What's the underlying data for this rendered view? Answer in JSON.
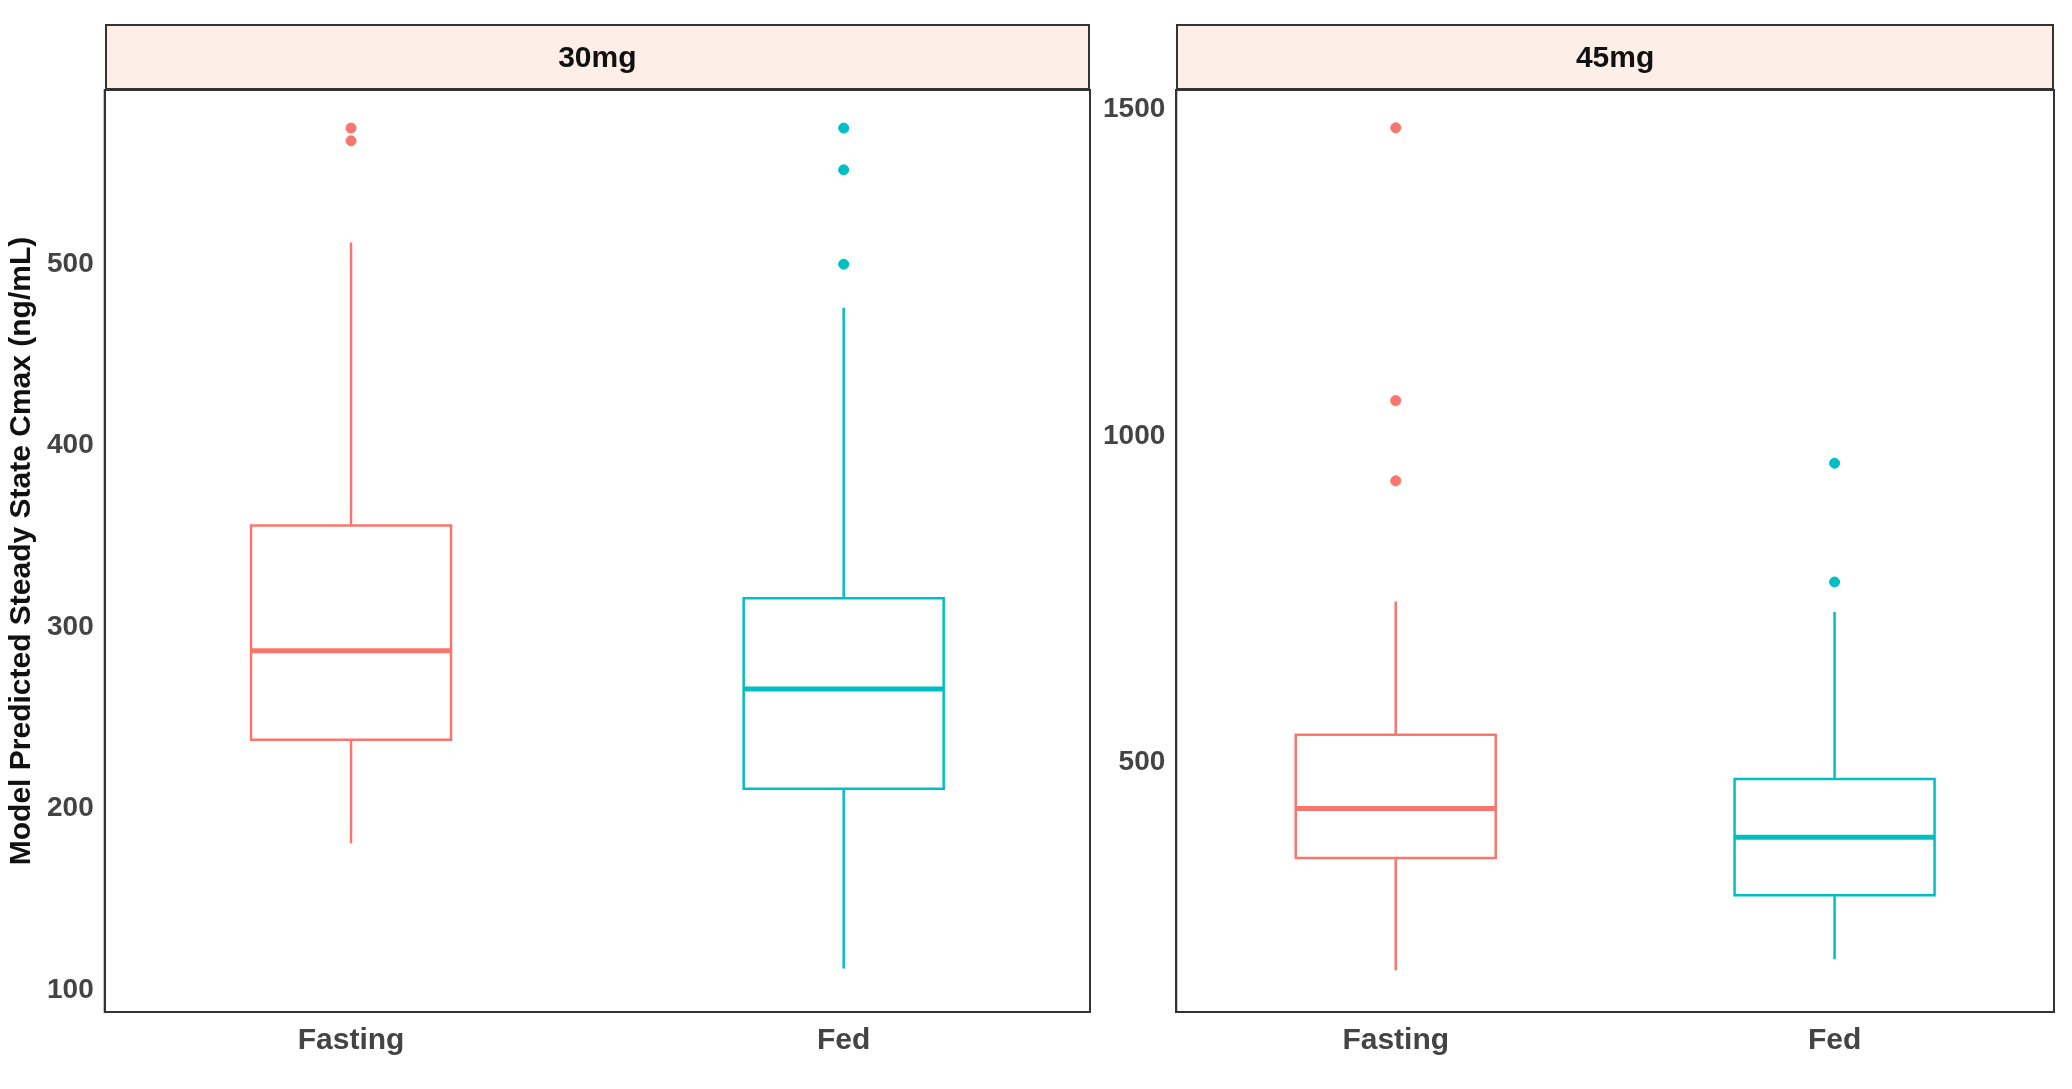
{
  "chart_data": [
    {
      "type": "box",
      "title": "30mg",
      "ylabel": "Model Predicted Steady State Cmax (ng/mL)",
      "categories": [
        "Fasting",
        "Fed"
      ],
      "colors": [
        "#f8766d",
        "#00bfc4"
      ],
      "ylim": [
        88,
        596
      ],
      "yticks": [
        100,
        200,
        300,
        400,
        500
      ],
      "grid": false,
      "boxes": [
        {
          "low": 181,
          "q1": 238,
          "median": 287,
          "q3": 356,
          "high": 512,
          "outliers": [
            575,
            568
          ]
        },
        {
          "low": 112,
          "q1": 211,
          "median": 266,
          "q3": 316,
          "high": 476,
          "outliers": [
            575,
            552,
            500
          ]
        }
      ]
    },
    {
      "type": "box",
      "title": "45mg",
      "categories": [
        "Fasting",
        "Fed"
      ],
      "colors": [
        "#f8766d",
        "#00bfc4"
      ],
      "ylim": [
        117,
        1530
      ],
      "yticks": [
        500,
        1000,
        1500
      ],
      "grid": false,
      "boxes": [
        {
          "low": 181,
          "q1": 353,
          "median": 429,
          "q3": 542,
          "high": 746,
          "outliers": [
            1472,
            1054,
            931
          ]
        },
        {
          "low": 198,
          "q1": 296,
          "median": 385,
          "q3": 474,
          "high": 730,
          "outliers": [
            958,
            776
          ]
        }
      ]
    }
  ]
}
